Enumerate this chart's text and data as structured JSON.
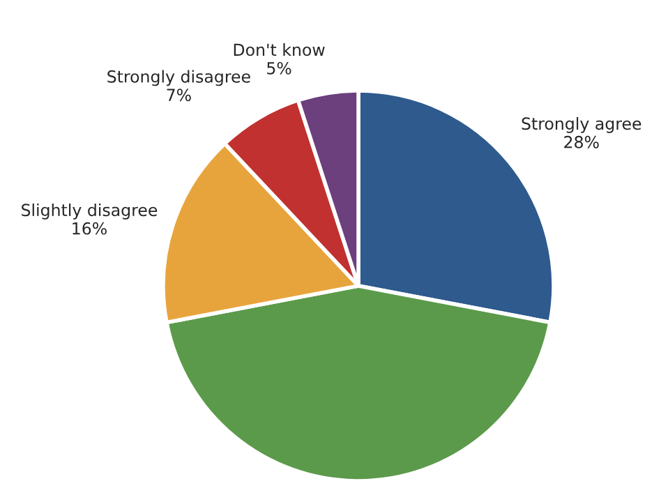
{
  "chart_data": {
    "type": "pie",
    "categories": [
      "Strongly agree",
      null,
      "Slightly disagree",
      "Strongly disagree",
      "Don't know"
    ],
    "values": [
      28,
      44,
      16,
      7,
      5
    ],
    "value_labels": [
      "28%",
      null,
      "16%",
      "7%",
      "5%"
    ],
    "colors": [
      "#2e5a8e",
      "#5b9a4a",
      "#e8a43c",
      "#c0312f",
      "#6c3f7d"
    ]
  }
}
